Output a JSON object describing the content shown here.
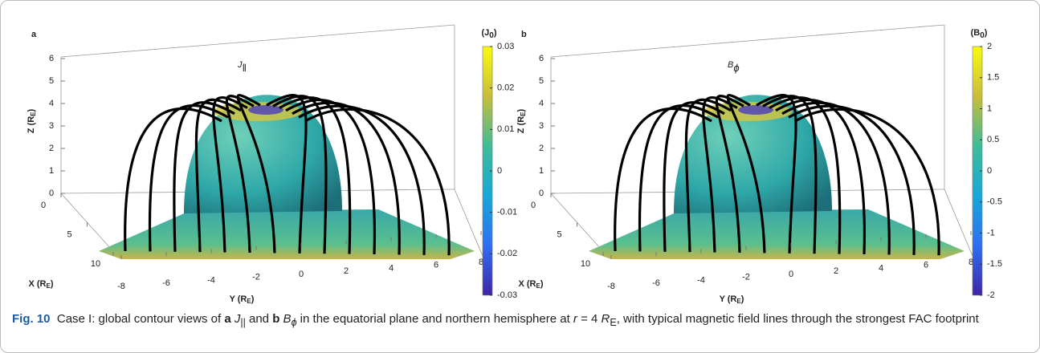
{
  "panels": [
    {
      "label": "a",
      "plot_title": {
        "symbol": "J",
        "subscript": "‖"
      },
      "colorbar": {
        "title": {
          "open": "(J",
          "sub": "0",
          "close": ")"
        },
        "lim": [
          -0.03,
          0.03
        ],
        "ticks": [
          -0.03,
          -0.02,
          -0.01,
          0,
          0.01,
          0.02,
          0.03
        ]
      },
      "axes": {
        "x": {
          "label": {
            "open": "X (R",
            "sub": "E",
            "close": ")"
          },
          "ticks": [
            0,
            5,
            10
          ]
        },
        "y": {
          "label": {
            "open": "Y (R",
            "sub": "E",
            "close": ")"
          },
          "ticks": [
            -8,
            -6,
            -4,
            -2,
            0,
            2,
            4,
            6,
            8
          ]
        },
        "z": {
          "label": {
            "open": "Z (R",
            "sub": "E",
            "close": ")"
          },
          "ticks": [
            0,
            1,
            2,
            3,
            4,
            5,
            6
          ]
        }
      }
    },
    {
      "label": "b",
      "plot_title": {
        "symbol": "B",
        "subscript": "ϕ"
      },
      "colorbar": {
        "title": {
          "open": "(B",
          "sub": "0",
          "close": ")"
        },
        "lim": [
          -2,
          2
        ],
        "ticks": [
          -2,
          -1.5,
          -1,
          -0.5,
          0,
          0.5,
          1,
          1.5,
          2
        ]
      },
      "axes": {
        "x": {
          "label": {
            "open": "X (R",
            "sub": "E",
            "close": ")"
          },
          "ticks": [
            0,
            5,
            10
          ]
        },
        "y": {
          "label": {
            "open": "Y (R",
            "sub": "E",
            "close": ")"
          },
          "ticks": [
            -8,
            -6,
            -4,
            -2,
            0,
            2,
            4,
            6,
            8
          ]
        },
        "z": {
          "label": {
            "open": "Z (R",
            "sub": "E",
            "close": ")"
          },
          "ticks": [
            0,
            1,
            2,
            3,
            4,
            5,
            6
          ]
        }
      }
    }
  ],
  "caption": {
    "label": "Fig. 10",
    "parts": [
      "Case I: global contour views of ",
      "a",
      "J",
      "||",
      " and ",
      "b",
      "B",
      "ϕ",
      " in the equatorial plane and northern hemisphere at ",
      "r",
      " = 4 ",
      "R",
      "E",
      ", with typical magnetic field lines through the strongest FAC footprint"
    ]
  }
}
